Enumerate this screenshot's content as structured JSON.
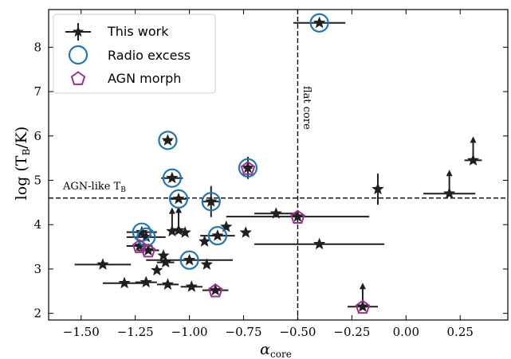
{
  "chart_data": {
    "type": "scatter",
    "title": "",
    "xlabel": {
      "main": "α",
      "sub": "core"
    },
    "ylabel": {
      "prefix": "log (T",
      "sub": "B",
      "suffix": "/K)"
    },
    "xlim": [
      -1.65,
      0.47
    ],
    "ylim": [
      1.85,
      8.85
    ],
    "xticks": [
      -1.5,
      -1.25,
      -1.0,
      -0.75,
      -0.5,
      -0.25,
      0.0,
      0.25
    ],
    "xtick_labels": [
      "−1.50",
      "−1.25",
      "−1.00",
      "−0.75",
      "−0.50",
      "−0.25",
      "0.00",
      "0.25"
    ],
    "yticks": [
      2,
      3,
      4,
      5,
      6,
      7,
      8
    ],
    "ytick_labels": [
      "2",
      "3",
      "4",
      "5",
      "6",
      "7",
      "8"
    ],
    "grid": false,
    "legend_position": "top-left",
    "legend": [
      {
        "label": "This work",
        "marker": "star-errorbar"
      },
      {
        "label": "Radio excess",
        "marker": "circle"
      },
      {
        "label": "AGN morph",
        "marker": "pentagon"
      }
    ],
    "reference_lines": {
      "horizontal": {
        "y": 4.6,
        "label_main": "AGN-like T",
        "label_sub": "B"
      },
      "vertical": {
        "x": -0.5,
        "label": "flat core"
      }
    },
    "colors": {
      "stars": "#1f1f1f",
      "radio_excess": "#1f77b4",
      "agn_morph": "#9e2f8f"
    },
    "series": [
      {
        "name": "This work",
        "points": [
          {
            "x": -0.4,
            "y": 8.55,
            "xerr": 0.12
          },
          {
            "x": -1.1,
            "y": 5.9,
            "xerr": 0.02
          },
          {
            "x": -0.73,
            "y": 5.28,
            "xerr": 0.02,
            "yerr": 0.25
          },
          {
            "x": -1.08,
            "y": 5.05,
            "xerr": 0.05
          },
          {
            "x": -1.05,
            "y": 4.58,
            "xerr": 0.04
          },
          {
            "x": -0.9,
            "y": 4.52,
            "xerr": 0.04,
            "yerr": 0.35
          },
          {
            "x": 0.31,
            "y": 5.45,
            "xerr": 0.04,
            "lower_limit": true
          },
          {
            "x": 0.2,
            "y": 4.7,
            "xerr": 0.12,
            "lower_limit": true
          },
          {
            "x": -0.13,
            "y": 4.8,
            "yerr": 0.35
          },
          {
            "x": -0.6,
            "y": 4.25,
            "xerr": 0.1
          },
          {
            "x": -0.5,
            "y": 4.18,
            "xerr": 0.33
          },
          {
            "x": -0.4,
            "y": 3.56,
            "xerr": 0.3
          },
          {
            "x": -0.2,
            "y": 2.15,
            "xerr": 0.07,
            "lower_limit": true
          },
          {
            "x": -0.87,
            "y": 3.75,
            "xerr": 0.08
          },
          {
            "x": -0.74,
            "y": 3.82
          },
          {
            "x": -0.83,
            "y": 3.95
          },
          {
            "x": -0.93,
            "y": 3.62
          },
          {
            "x": -1.02,
            "y": 3.82
          },
          {
            "x": -1.05,
            "y": 3.87,
            "lower_limit": true
          },
          {
            "x": -1.08,
            "y": 3.85,
            "lower_limit": true
          },
          {
            "x": -1.22,
            "y": 3.83,
            "xerr": 0.07
          },
          {
            "x": -1.2,
            "y": 3.72,
            "xerr": 0.09
          },
          {
            "x": -1.23,
            "y": 3.52,
            "xerr": 0.06
          },
          {
            "x": -1.19,
            "y": 3.42,
            "xerr": 0.05
          },
          {
            "x": -1.12,
            "y": 3.3
          },
          {
            "x": -1.11,
            "y": 3.15,
            "xerr": 0.04
          },
          {
            "x": -1.15,
            "y": 2.97
          },
          {
            "x": -1.0,
            "y": 3.2,
            "xerr": 0.2
          },
          {
            "x": -0.92,
            "y": 3.1
          },
          {
            "x": -1.4,
            "y": 3.1,
            "xerr": 0.13
          },
          {
            "x": -1.3,
            "y": 2.68,
            "xerr": 0.1
          },
          {
            "x": -1.2,
            "y": 2.7,
            "xerr": 0.05
          },
          {
            "x": -1.1,
            "y": 2.65,
            "xerr": 0.05
          },
          {
            "x": -0.99,
            "y": 2.6,
            "xerr": 0.05
          },
          {
            "x": -0.88,
            "y": 2.52,
            "xerr": 0.06
          }
        ]
      },
      {
        "name": "Radio excess",
        "points": [
          {
            "x": -0.4,
            "y": 8.55
          },
          {
            "x": -1.1,
            "y": 5.9
          },
          {
            "x": -0.73,
            "y": 5.28
          },
          {
            "x": -1.08,
            "y": 5.05
          },
          {
            "x": -1.05,
            "y": 4.58
          },
          {
            "x": -0.9,
            "y": 4.52
          },
          {
            "x": -0.87,
            "y": 3.75
          },
          {
            "x": -1.22,
            "y": 3.83
          },
          {
            "x": -1.2,
            "y": 3.72
          },
          {
            "x": -1.0,
            "y": 3.2
          }
        ]
      },
      {
        "name": "AGN morph",
        "points": [
          {
            "x": -0.73,
            "y": 5.28
          },
          {
            "x": -0.5,
            "y": 4.18
          },
          {
            "x": -0.2,
            "y": 2.15
          },
          {
            "x": -1.23,
            "y": 3.52
          },
          {
            "x": -1.19,
            "y": 3.42
          },
          {
            "x": -0.88,
            "y": 2.52
          }
        ]
      }
    ]
  }
}
